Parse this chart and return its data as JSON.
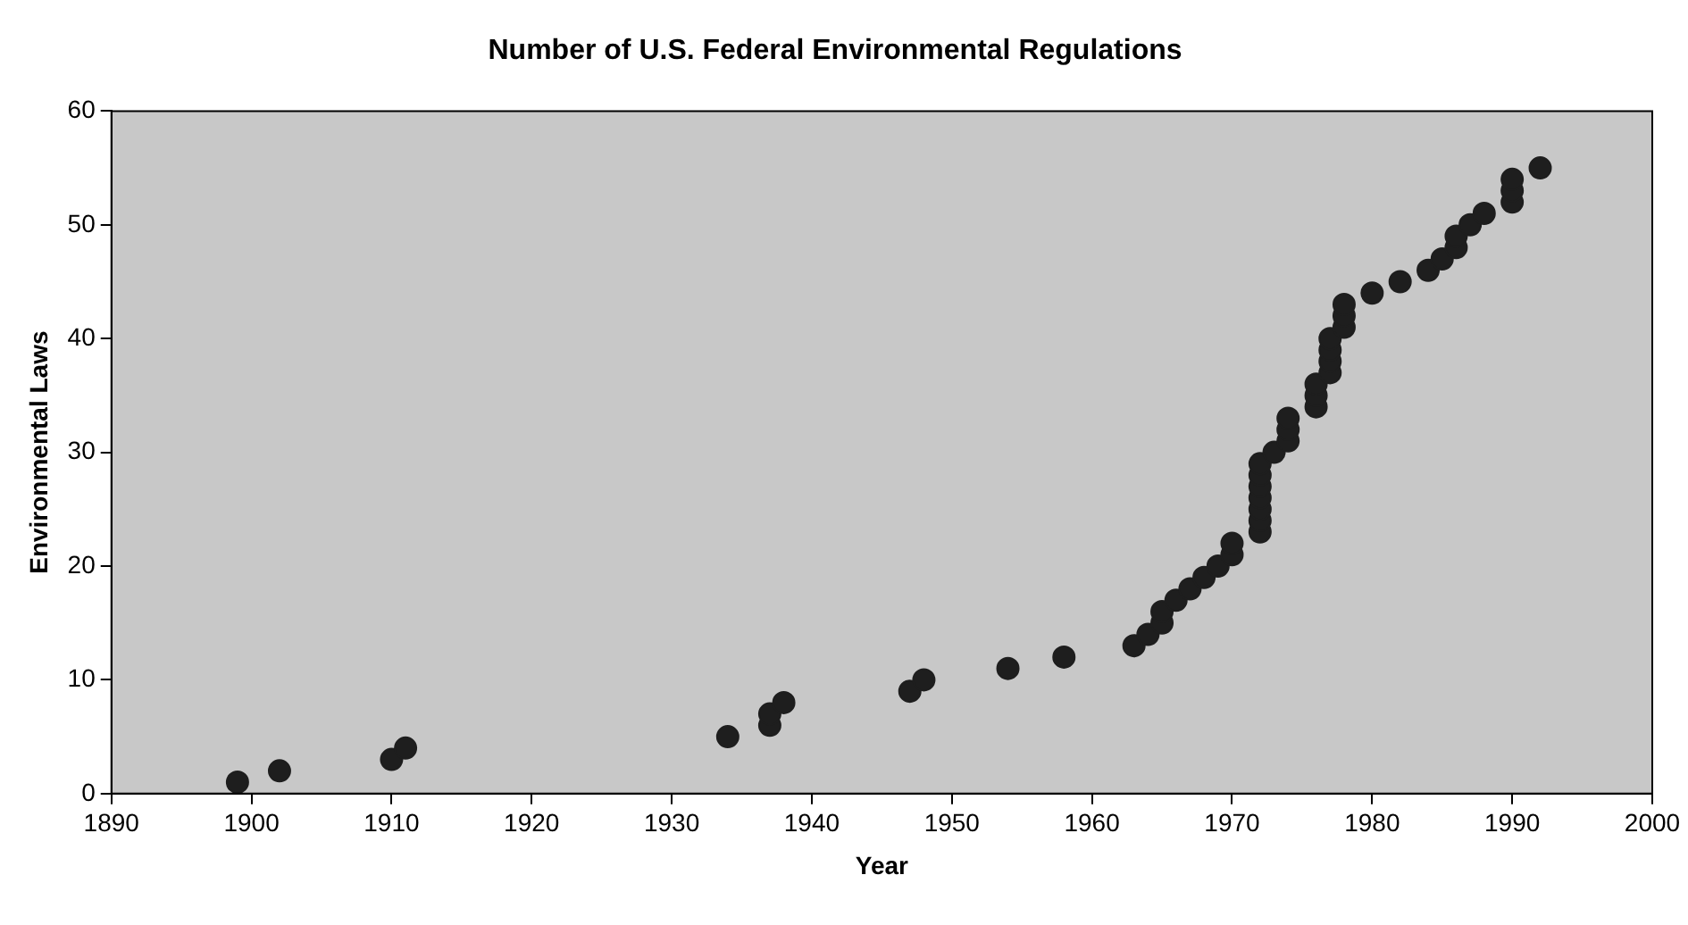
{
  "chart_data": {
    "type": "scatter",
    "title": "Number of U.S. Federal Environmental Regulations",
    "xlabel": "Year",
    "ylabel": "Environmental Laws",
    "x": [
      1899,
      1902,
      1910,
      1911,
      1934,
      1937,
      1937,
      1938,
      1947,
      1948,
      1954,
      1958,
      1963,
      1964,
      1965,
      1965,
      1966,
      1967,
      1968,
      1969,
      1970,
      1970,
      1972,
      1972,
      1972,
      1972,
      1972,
      1972,
      1972,
      1973,
      1974,
      1974,
      1974,
      1976,
      1976,
      1976,
      1977,
      1977,
      1977,
      1977,
      1978,
      1978,
      1978,
      1980,
      1982,
      1984,
      1985,
      1986,
      1986,
      1987,
      1988,
      1990,
      1990,
      1990,
      1992
    ],
    "values": [
      1,
      2,
      3,
      4,
      5,
      6,
      7,
      8,
      9,
      10,
      11,
      12,
      13,
      14,
      15,
      16,
      17,
      18,
      19,
      20,
      21,
      22,
      23,
      24,
      25,
      26,
      27,
      28,
      29,
      30,
      31,
      32,
      33,
      34,
      35,
      36,
      37,
      38,
      39,
      40,
      41,
      42,
      43,
      44,
      45,
      46,
      47,
      48,
      49,
      50,
      51,
      52,
      53,
      54,
      55
    ],
    "color": "#1e1e1e",
    "marker": "circle",
    "grid": false,
    "legend": false,
    "xlim": [
      1890,
      2000
    ],
    "xticks": [
      1890,
      1900,
      1910,
      1920,
      1930,
      1940,
      1950,
      1960,
      1970,
      1980,
      1990,
      2000
    ],
    "ylim": [
      0,
      60
    ],
    "yticks": [
      0,
      10,
      20,
      30,
      40,
      50,
      60
    ]
  }
}
